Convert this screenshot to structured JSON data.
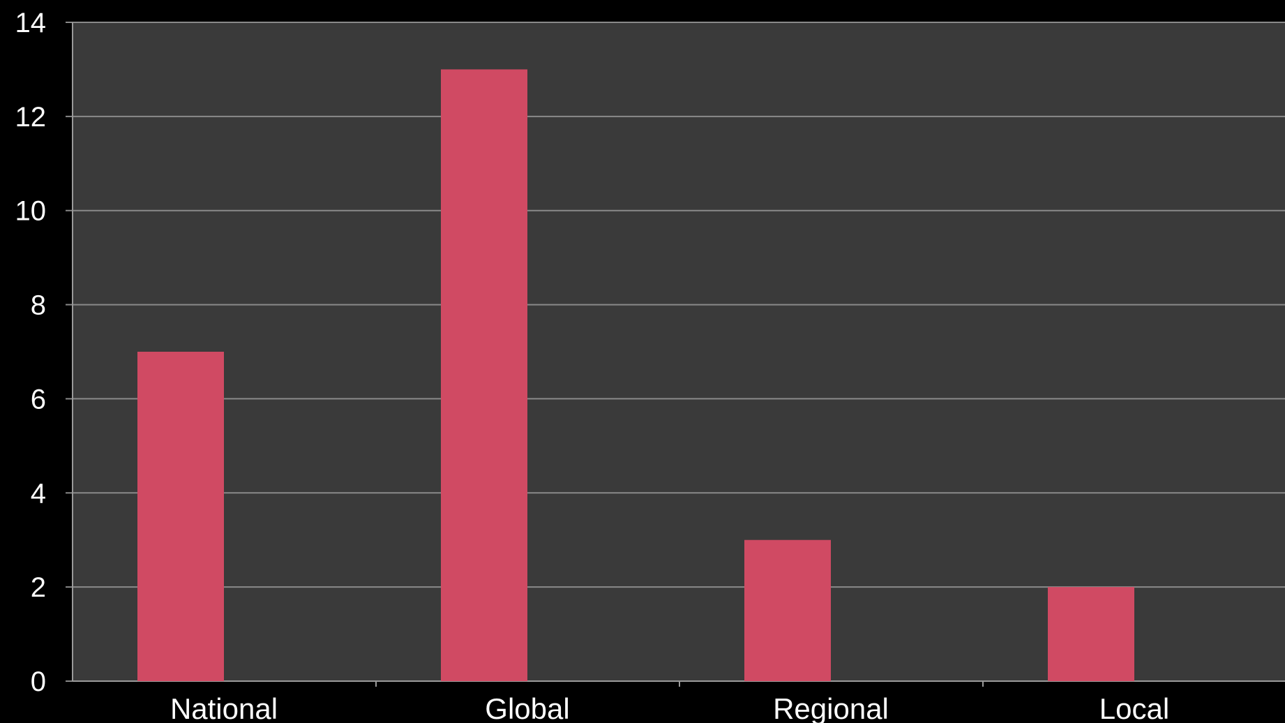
{
  "chart_data": {
    "type": "bar",
    "categories": [
      "National",
      "Global",
      "Regional",
      "Local"
    ],
    "values": [
      7,
      13,
      3,
      2
    ],
    "ylim": [
      0,
      14
    ],
    "yticks": [
      0,
      2,
      4,
      6,
      8,
      10,
      12,
      14
    ],
    "grid": true,
    "colors": {
      "bar": "#d04a63",
      "plot_background": "#3a3a3a",
      "page_background": "#000000",
      "grid": "#8a8a8a",
      "text": "#ffffff"
    }
  }
}
